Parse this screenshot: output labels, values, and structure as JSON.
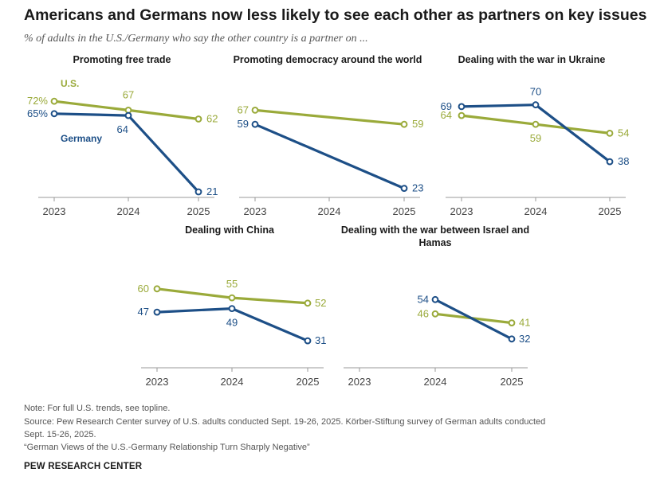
{
  "header": {
    "title": "Americans and Germans now less likely to see each other as partners on key issues",
    "subtitle": "% of adults in the U.S./Germany who say the other country is a partner on ..."
  },
  "colors": {
    "us": "#9aaa3a",
    "germany": "#1d4f87",
    "axis": "#999999"
  },
  "legend": {
    "us": "U.S.",
    "germany": "Germany"
  },
  "chart_data": [
    {
      "type": "line",
      "title": "Promoting free trade",
      "x": [
        "2023",
        "2024",
        "2025"
      ],
      "series": [
        {
          "name": "U.S.",
          "values": [
            72,
            67,
            62
          ],
          "labels": [
            "72%",
            "67",
            "62"
          ]
        },
        {
          "name": "Germany",
          "values": [
            65,
            64,
            21
          ],
          "labels": [
            "65%",
            "64",
            "21"
          ]
        }
      ]
    },
    {
      "type": "line",
      "title": "Promoting democracy around the world",
      "x": [
        "2023",
        "2024",
        "2025"
      ],
      "series": [
        {
          "name": "U.S.",
          "values": [
            67,
            null,
            59
          ],
          "labels": [
            "67",
            "",
            "59"
          ]
        },
        {
          "name": "Germany",
          "values": [
            59,
            null,
            23
          ],
          "labels": [
            "59",
            "",
            "23"
          ]
        }
      ]
    },
    {
      "type": "line",
      "title": "Dealing with the war in Ukraine",
      "x": [
        "2023",
        "2024",
        "2025"
      ],
      "series": [
        {
          "name": "U.S.",
          "values": [
            64,
            59,
            54
          ],
          "labels": [
            "64",
            "59",
            "54"
          ]
        },
        {
          "name": "Germany",
          "values": [
            69,
            70,
            38
          ],
          "labels": [
            "69",
            "70",
            "38"
          ]
        }
      ]
    },
    {
      "type": "line",
      "title": "Dealing with China",
      "x": [
        "2023",
        "2024",
        "2025"
      ],
      "series": [
        {
          "name": "U.S.",
          "values": [
            60,
            55,
            52
          ],
          "labels": [
            "60",
            "55",
            "52"
          ]
        },
        {
          "name": "Germany",
          "values": [
            47,
            49,
            31
          ],
          "labels": [
            "47",
            "49",
            "31"
          ]
        }
      ]
    },
    {
      "type": "line",
      "title": "Dealing with the war between Israel and Hamas",
      "x": [
        "2023",
        "2024",
        "2025"
      ],
      "series": [
        {
          "name": "U.S.",
          "values": [
            null,
            46,
            41
          ],
          "labels": [
            "",
            "46",
            "41"
          ]
        },
        {
          "name": "Germany",
          "values": [
            null,
            54,
            32
          ],
          "labels": [
            "",
            "54",
            "32"
          ]
        }
      ]
    }
  ],
  "footer": {
    "note": "Note: For full U.S. trends, see topline.",
    "source_line1": "Source: Pew Research Center survey of U.S. adults conducted Sept. 19-26, 2025. Körber-Stiftung survey of German adults conducted",
    "source_line2": "Sept. 15-26, 2025.",
    "report": "“German Views of the U.S.-Germany Relationship Turn Sharply Negative”",
    "brand": "PEW RESEARCH CENTER"
  }
}
